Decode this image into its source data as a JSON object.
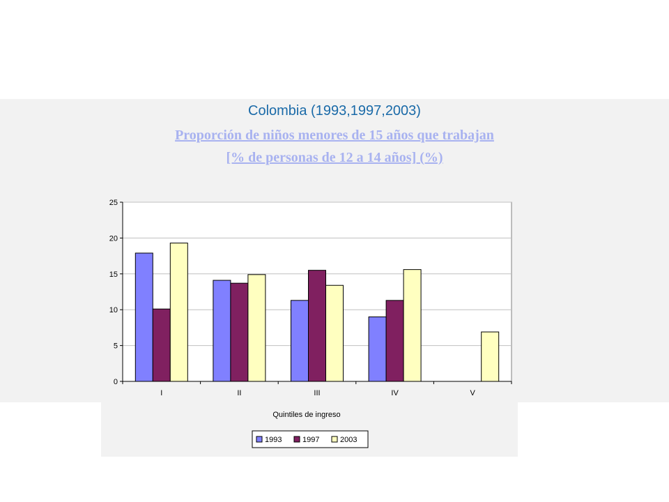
{
  "title": "Colombia (1993,1997,2003)",
  "subtitle_line1": "Proporción de niños menores de 15 años que trabajan",
  "subtitle_line2": "[% de personas de 12 a 14 años] (%)",
  "chart_data": {
    "type": "bar",
    "title": "",
    "xlabel": "Quintiles de ingreso",
    "ylabel": "",
    "categories": [
      "I",
      "II",
      "III",
      "IV",
      "V"
    ],
    "ylim": [
      0,
      25
    ],
    "yticks": [
      0,
      5,
      10,
      15,
      20,
      25
    ],
    "grid": true,
    "legend_position": "bottom",
    "series": [
      {
        "name": "1993",
        "color": "#8080ff",
        "values": [
          17.9,
          14.1,
          11.3,
          9.0,
          null
        ]
      },
      {
        "name": "1997",
        "color": "#802060",
        "values": [
          10.1,
          13.7,
          15.5,
          11.3,
          null
        ]
      },
      {
        "name": "2003",
        "color": "#ffffc0",
        "values": [
          19.3,
          14.9,
          13.4,
          15.6,
          6.9
        ]
      }
    ]
  }
}
